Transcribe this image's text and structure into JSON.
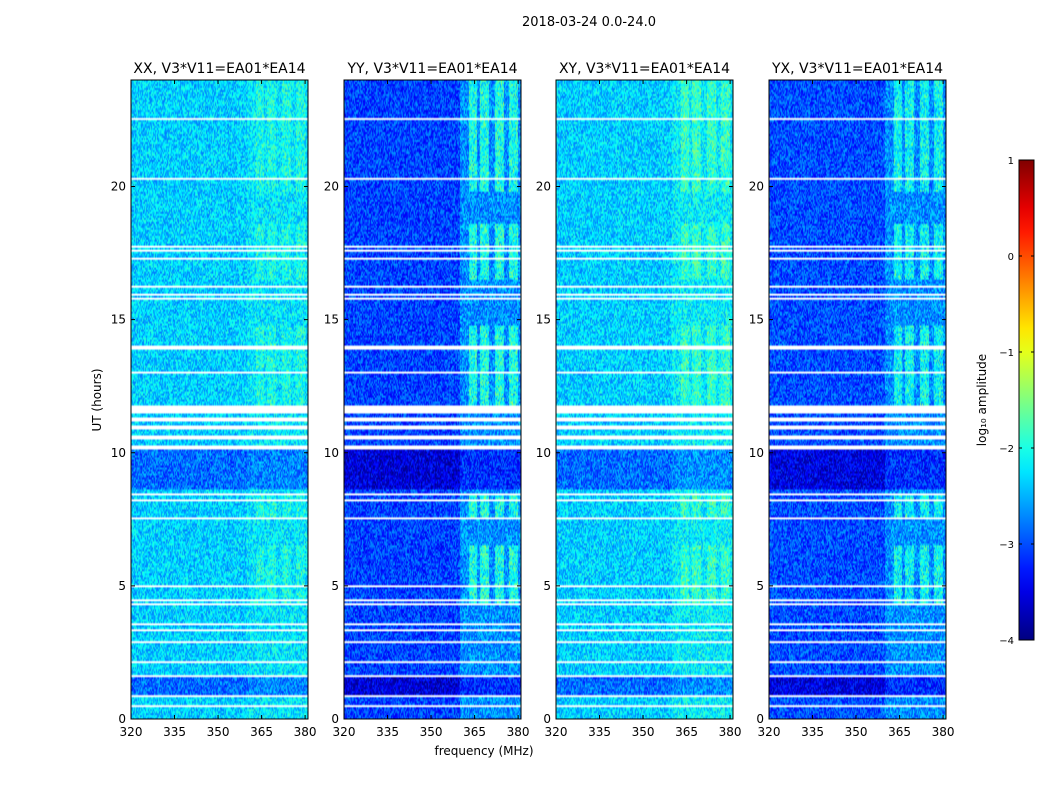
{
  "figure_title": "2018-03-24 0.0-24.0",
  "chart_data": {
    "type": "heatmap",
    "title": "2018-03-24 0.0-24.0",
    "xlabel": "frequency (MHz)",
    "ylabel": "UT (hours)",
    "xlim": [
      320,
      381
    ],
    "ylim": [
      0,
      24
    ],
    "xticks": [
      320,
      335,
      350,
      365,
      380
    ],
    "yticks": [
      0,
      5,
      10,
      15,
      20
    ],
    "panels": [
      {
        "title": "XX, V3*V11=EA01*EA14",
        "pol": "XX",
        "base_level": -2.35,
        "rfi_boost": 0.35
      },
      {
        "title": "YY, V3*V11=EA01*EA14",
        "pol": "YY",
        "base_level": -3.05,
        "rfi_boost": 1.1
      },
      {
        "title": "XY, V3*V11=EA01*EA14",
        "pol": "XY",
        "base_level": -2.35,
        "rfi_boost": 0.5
      },
      {
        "title": "YX, V3*V11=EA01*EA14",
        "pol": "YX",
        "base_level": -3.0,
        "rfi_boost": 0.95
      }
    ],
    "rfi_band_mhz": [
      360,
      381
    ],
    "flagged_ut_ranges": [
      [
        0.45,
        0.5
      ],
      [
        0.85,
        0.9
      ],
      [
        1.55,
        1.65
      ],
      [
        1.85,
        1.9
      ],
      [
        2.1,
        2.15
      ],
      [
        2.85,
        2.9
      ],
      [
        3.3,
        3.4
      ],
      [
        3.5,
        3.6
      ],
      [
        4.3,
        4.35
      ],
      [
        4.45,
        4.5
      ],
      [
        4.95,
        5.0
      ],
      [
        6.95,
        7.0
      ],
      [
        7.5,
        7.55
      ],
      [
        8.2,
        8.25
      ],
      [
        8.4,
        8.45
      ],
      [
        10.1,
        10.25
      ],
      [
        10.5,
        10.65
      ],
      [
        10.85,
        11.0
      ],
      [
        11.2,
        11.3
      ],
      [
        11.45,
        11.8
      ],
      [
        12.8,
        12.85
      ],
      [
        13.0,
        13.05
      ],
      [
        13.9,
        14.05
      ],
      [
        15.75,
        15.8
      ],
      [
        15.9,
        15.95
      ],
      [
        16.2,
        16.25
      ],
      [
        16.85,
        16.9
      ],
      [
        17.25,
        17.35
      ],
      [
        17.55,
        17.6
      ],
      [
        17.7,
        17.75
      ],
      [
        18.2,
        18.25
      ],
      [
        20.25,
        20.3
      ],
      [
        22.5,
        22.55
      ]
    ],
    "colorbar": {
      "label": "log₁₀ amplitude",
      "range": [
        -4,
        1
      ],
      "ticks": [
        1,
        0,
        -1,
        -2,
        -3,
        -4
      ],
      "tick_labels": [
        "1",
        "0",
        "−1",
        "−2",
        "−3",
        "−4"
      ],
      "colormap": "jet"
    }
  }
}
